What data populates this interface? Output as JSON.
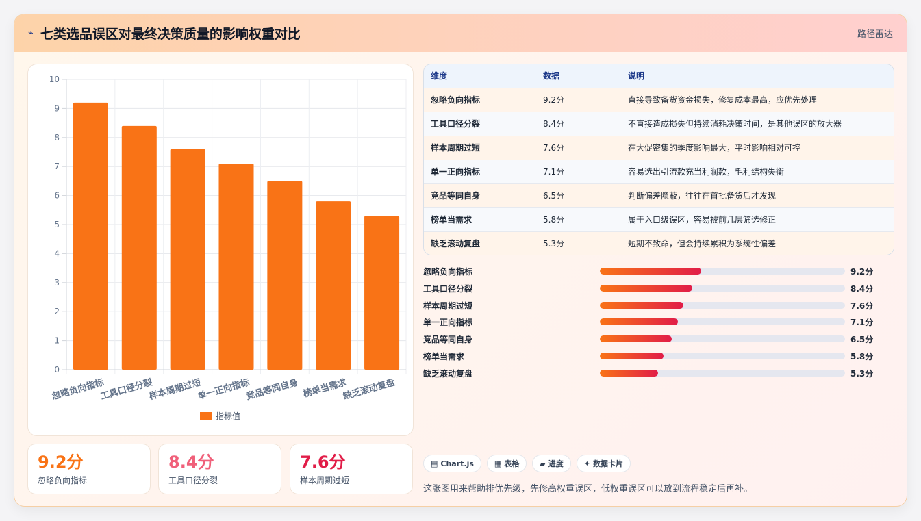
{
  "header": {
    "logo_icon": "⌁",
    "title": "七类选品误区对最终决策质量的影响权重对比",
    "right_label": "路径雷达"
  },
  "chart_data": {
    "type": "bar",
    "categories": [
      "忽略负向指标",
      "工具口径分裂",
      "样本周期过短",
      "单一正向指标",
      "竞品等同自身",
      "榜单当需求",
      "缺乏滚动复盘"
    ],
    "series": [
      {
        "name": "指标值",
        "values": [
          9.2,
          8.4,
          7.6,
          7.1,
          6.5,
          5.8,
          5.3
        ],
        "color": "#f97316"
      }
    ],
    "ylim": [
      0,
      10
    ],
    "yticks": [
      0,
      1,
      2,
      3,
      4,
      5,
      6,
      7,
      8,
      9,
      10
    ],
    "grid": true,
    "legend": "bottom"
  },
  "kpis": [
    {
      "value": "9.2分",
      "label": "忽略负向指标",
      "color": "#f97316"
    },
    {
      "value": "8.4分",
      "label": "工具口径分裂",
      "color": "#f0607a"
    },
    {
      "value": "7.6分",
      "label": "样本周期过短",
      "color": "#e11d48"
    }
  ],
  "table": {
    "headers": [
      "维度",
      "数据",
      "说明"
    ],
    "rows": [
      [
        "忽略负向指标",
        "9.2分",
        "直接导致备货资金损失，修复成本最高，应优先处理"
      ],
      [
        "工具口径分裂",
        "8.4分",
        "不直接造成损失但持续消耗决策时间，是其他误区的放大器"
      ],
      [
        "样本周期过短",
        "7.6分",
        "在大促密集的季度影响最大，平时影响相对可控"
      ],
      [
        "单一正向指标",
        "7.1分",
        "容易选出引流款充当利润款，毛利结构失衡"
      ],
      [
        "竞品等同自身",
        "6.5分",
        "判断偏差隐蔽，往往在首批备货后才发现"
      ],
      [
        "榜单当需求",
        "5.8分",
        "属于入口级误区，容易被前几层筛选修正"
      ],
      [
        "缺乏滚动复盘",
        "5.3分",
        "短期不致命，但会持续累积为系统性偏差"
      ]
    ]
  },
  "progress": {
    "max": 10,
    "items": [
      {
        "label": "忽略负向指标",
        "value": 9.2,
        "text": "9.2分"
      },
      {
        "label": "工具口径分裂",
        "value": 8.4,
        "text": "8.4分"
      },
      {
        "label": "样本周期过短",
        "value": 7.6,
        "text": "7.6分"
      },
      {
        "label": "单一正向指标",
        "value": 7.1,
        "text": "7.1分"
      },
      {
        "label": "竞品等同自身",
        "value": 6.5,
        "text": "6.5分"
      },
      {
        "label": "榜单当需求",
        "value": 5.8,
        "text": "5.8分"
      },
      {
        "label": "缺乏滚动复盘",
        "value": 5.3,
        "text": "5.3分"
      }
    ]
  },
  "chips": [
    {
      "icon": "▤",
      "label": "Chart.js"
    },
    {
      "icon": "▦",
      "label": "表格"
    },
    {
      "icon": "▰",
      "label": "进度"
    },
    {
      "icon": "✦",
      "label": "数据卡片"
    }
  ],
  "footnote": "这张图用来帮助排优先级，先修高权重误区，低权重误区可以放到流程稳定后再补。"
}
